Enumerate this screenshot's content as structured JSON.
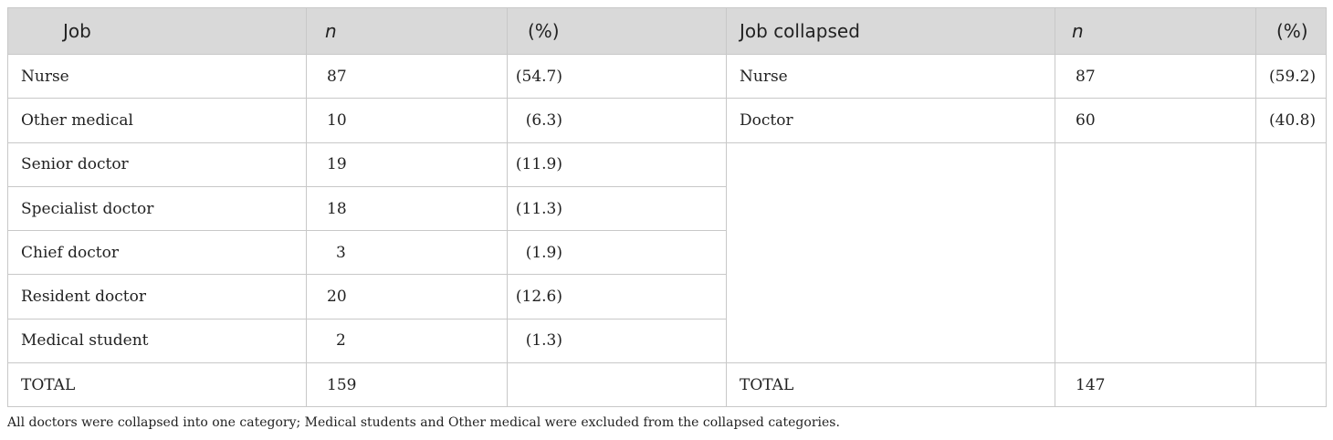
{
  "header": {
    "job": "Job",
    "n": "n",
    "pct": "(%)",
    "job_collapsed": "Job collapsed",
    "n2": "n",
    "pct2": "(%)"
  },
  "rows": [
    {
      "job": "Nurse",
      "n": "87",
      "pct": "(54.7)"
    },
    {
      "job": "Other medical",
      "n": "10",
      "pct": "(6.3)"
    },
    {
      "job": "Senior doctor",
      "n": "19",
      "pct": "(11.9)"
    },
    {
      "job": "Specialist doctor",
      "n": "18",
      "pct": "(11.3)"
    },
    {
      "job": "Chief doctor",
      "n": "3",
      "pct": "(1.9)"
    },
    {
      "job": "Resident doctor",
      "n": "20",
      "pct": "(12.6)"
    },
    {
      "job": "Medical student",
      "n": "2",
      "pct": "(1.3)"
    }
  ],
  "collapsed_rows": [
    {
      "job": "Nurse",
      "n": "87",
      "pct": "(59.2)"
    },
    {
      "job": "Doctor",
      "n": "60",
      "pct": "(40.8)"
    }
  ],
  "total": {
    "label": "TOTAL",
    "n": "159",
    "pct": "",
    "label2": "TOTAL",
    "n2": "147",
    "pct2": ""
  },
  "footnote": "All doctors were collapsed into one category; Medical students and Other medical were excluded from the collapsed categories."
}
